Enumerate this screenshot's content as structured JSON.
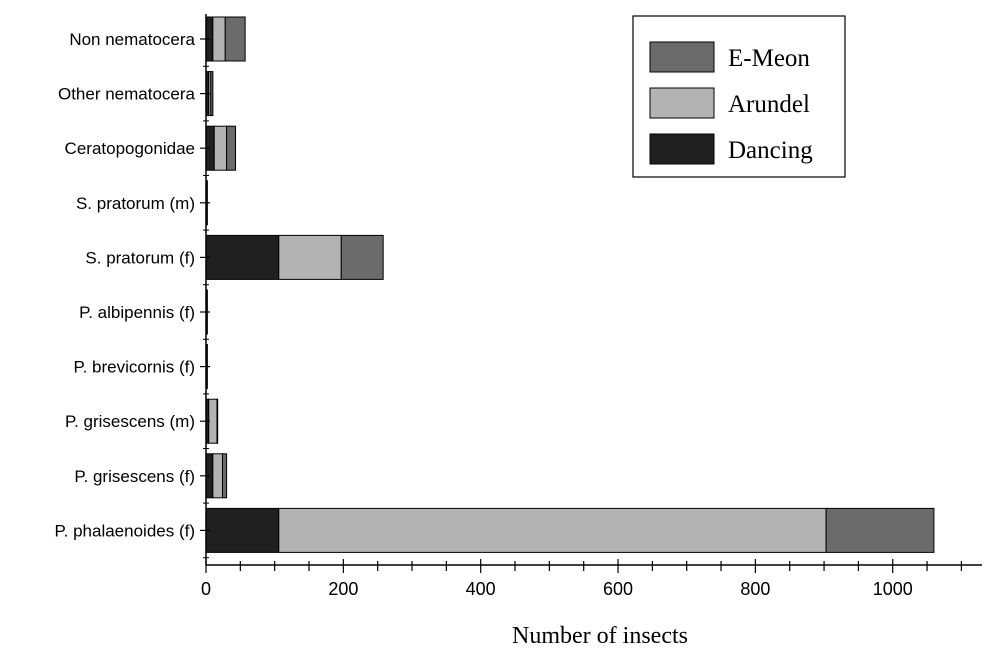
{
  "chart_data": {
    "type": "bar",
    "orientation": "horizontal",
    "stacked": true,
    "categories": [
      "Non nematocera",
      "Other nematocera",
      "Ceratopogonidae",
      "S. pratorum (m)",
      "S. pratorum (f)",
      "P. albipennis (f)",
      "P. brevicornis (f)",
      "P. grisescens (m)",
      "P. grisescens (f)",
      "P. phalaenoides (f)"
    ],
    "series": [
      {
        "name": "Dancing",
        "color": "#202020",
        "values": [
          10,
          4,
          12,
          1,
          106,
          1,
          1,
          4,
          10,
          106
        ]
      },
      {
        "name": "Arundel",
        "color": "#b3b3b3",
        "values": [
          18,
          3,
          18,
          1,
          91,
          1,
          1,
          12,
          14,
          797
        ]
      },
      {
        "name": "E-Meon",
        "color": "#6b6b6b",
        "values": [
          29,
          3,
          13,
          0,
          61,
          0,
          0,
          1,
          6,
          157
        ]
      }
    ],
    "legend_order": [
      "E-Meon",
      "Arundel",
      "Dancing"
    ],
    "legend_position": "top-right",
    "xlabel": "Number of insects",
    "ylabel": "",
    "title": "",
    "xlim": [
      0,
      1130
    ],
    "xticks": [
      0,
      200,
      400,
      600,
      800,
      1000
    ],
    "xtick_labels": [
      "0",
      "200",
      "400",
      "600",
      "800",
      "1000"
    ],
    "grid": false
  }
}
